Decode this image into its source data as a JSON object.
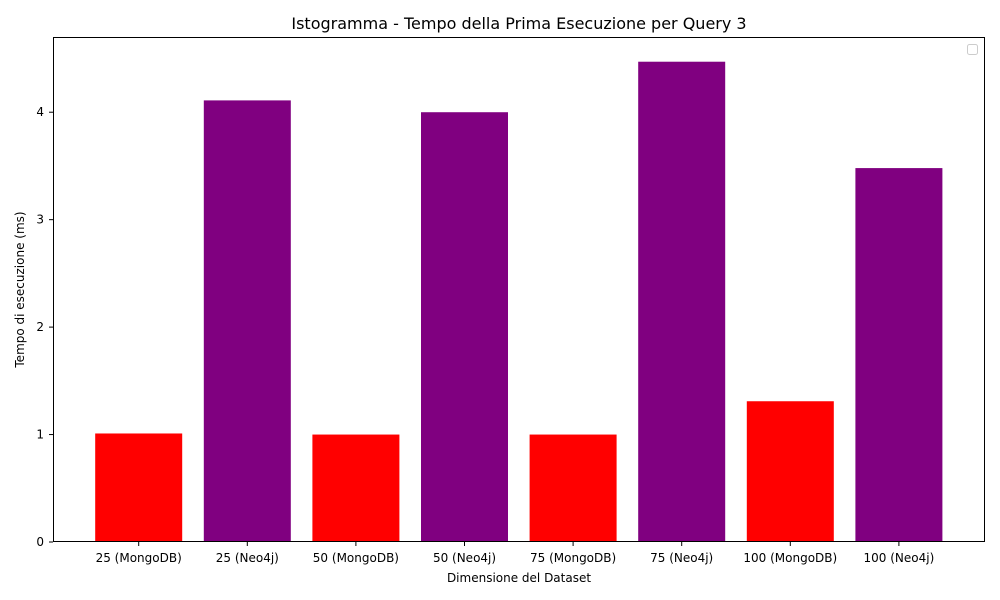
{
  "chart_data": {
    "type": "bar",
    "title": "Istogramma - Tempo della Prima Esecuzione per Query 3",
    "xlabel": "Dimensione del Dataset",
    "ylabel": "Tempo di esecuzione (ms)",
    "categories": [
      "25 (MongoDB)",
      "25 (Neo4j)",
      "50 (MongoDB)",
      "50 (Neo4j)",
      "75 (MongoDB)",
      "75 (Neo4j)",
      "100 (MongoDB)",
      "100 (Neo4j)"
    ],
    "values": [
      1.01,
      4.11,
      1.0,
      4.0,
      1.0,
      4.47,
      1.31,
      3.48
    ],
    "bar_colors": [
      "#ff0000",
      "#800080",
      "#ff0000",
      "#800080",
      "#ff0000",
      "#800080",
      "#ff0000",
      "#800080"
    ],
    "ylim": [
      0,
      4.7
    ],
    "yticks": [
      0,
      1,
      2,
      3,
      4
    ],
    "grid": false,
    "legend": {
      "position": "top-right",
      "entries": []
    }
  }
}
